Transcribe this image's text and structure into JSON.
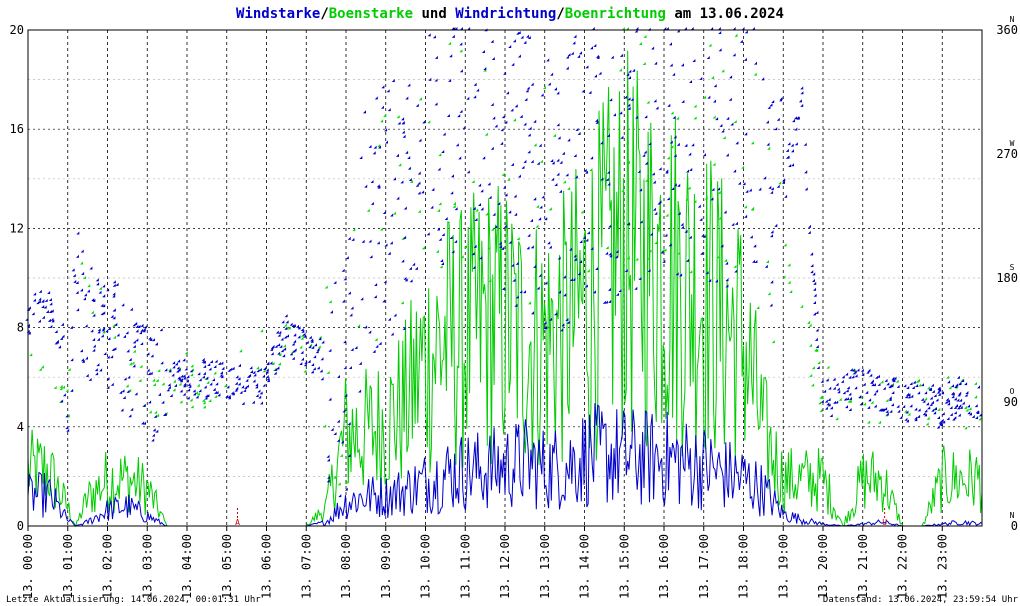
{
  "chart_data": {
    "type": "line",
    "title_parts": [
      {
        "text": "Windstarke",
        "color": "#0000cc"
      },
      {
        "text": "/",
        "color": "#000000"
      },
      {
        "text": "Boenstarke",
        "color": "#00cc00"
      },
      {
        "text": " und ",
        "color": "#000000"
      },
      {
        "text": "Windrichtung",
        "color": "#0000cc"
      },
      {
        "text": "/",
        "color": "#000000"
      },
      {
        "text": "Boenrichtung",
        "color": "#00cc00"
      },
      {
        "text": " am 13.06.2024",
        "color": "#000000"
      }
    ],
    "ylim": [
      0,
      20
    ],
    "y_ticks": [
      "0",
      "4",
      "8",
      "12",
      "16",
      "20"
    ],
    "y2lim": [
      0,
      360
    ],
    "y2_ticks": [
      "0",
      "90",
      "180",
      "270",
      "360"
    ],
    "compass_labels": [
      "N",
      "O",
      "S",
      "W",
      "N"
    ],
    "x_ticks": [
      "13. 00:00",
      "13. 01:00",
      "13. 02:00",
      "13. 03:00",
      "13. 04:00",
      "13. 05:00",
      "13. 06:00",
      "13. 07:00",
      "13. 08:00",
      "13. 09:00",
      "13. 10:00",
      "13. 11:00",
      "13. 12:00",
      "13. 13:00",
      "13. 14:00",
      "13. 15:00",
      "13. 16:00",
      "13. 17:00",
      "13. 18:00",
      "13. 19:00",
      "13. 20:00",
      "13. 21:00",
      "13. 22:00",
      "13. 23:00"
    ],
    "sun_markers": [
      {
        "label": "A",
        "hour": 5.27
      },
      {
        "label": "U",
        "hour": 21.55
      }
    ],
    "series": [
      {
        "key": "wind_speed",
        "color": "#0000cc"
      },
      {
        "key": "gust_speed",
        "color": "#00cc00"
      },
      {
        "key": "wind_direction",
        "color": "#0000cc"
      },
      {
        "key": "gust_direction",
        "color": "#00cc00"
      }
    ],
    "wind_speed": {
      "hours": [
        0,
        0.5,
        1,
        1.2,
        1.5,
        2,
        2.5,
        3,
        3.5,
        4,
        4.5,
        5,
        5.5,
        6,
        6.5,
        7,
        7.5,
        8,
        8.5,
        9,
        9.5,
        10,
        10.5,
        11,
        11.5,
        12,
        12.5,
        13,
        13.5,
        14,
        14.5,
        15,
        15.5,
        16,
        16.5,
        17,
        17.5,
        18,
        18.5,
        19,
        19.5,
        20,
        20.5,
        21,
        21.5,
        22,
        22.5,
        23,
        23.5,
        24
      ],
      "values": [
        1.5,
        1.6,
        0.3,
        0.0,
        0.2,
        0.8,
        1.0,
        0.5,
        0.0,
        0.0,
        0.0,
        0.0,
        0.0,
        0.0,
        0.0,
        0.0,
        0.2,
        1.2,
        1.5,
        1.5,
        1.8,
        2.2,
        2.6,
        2.8,
        2.8,
        3.0,
        3.2,
        2.9,
        3.0,
        3.5,
        3.6,
        3.5,
        3.4,
        3.4,
        3.2,
        3.0,
        2.6,
        2.4,
        1.8,
        0.6,
        0.3,
        0.1,
        0.0,
        0.1,
        0.2,
        0.0,
        0.0,
        0.1,
        0.2,
        0.1
      ]
    },
    "gust_speed": {
      "hours": [
        0,
        0.5,
        1,
        1.2,
        1.5,
        2,
        2.5,
        3,
        3.5,
        4,
        4.5,
        5,
        5.5,
        6,
        6.5,
        7,
        7.5,
        8,
        8.5,
        9,
        9.5,
        10,
        10.5,
        11,
        11.5,
        12,
        12.5,
        13,
        13.5,
        14,
        14.5,
        15,
        15.5,
        16,
        16.5,
        17,
        17.5,
        18,
        18.5,
        19,
        19.5,
        20,
        20.5,
        21,
        21.5,
        22,
        22.5,
        23,
        23.5,
        24
      ],
      "values": [
        3.0,
        3.0,
        1.0,
        0.0,
        1.5,
        2.5,
        2.5,
        2.0,
        0.0,
        0.0,
        0.0,
        0.0,
        0.0,
        0.0,
        0.0,
        0.0,
        1.0,
        5.0,
        5.0,
        5.5,
        6.5,
        9.0,
        10.0,
        10.0,
        11.0,
        11.0,
        10.0,
        10.0,
        10.5,
        12.0,
        13.5,
        15.0,
        14.0,
        14.5,
        13.0,
        12.5,
        11.0,
        10.0,
        5.0,
        2.5,
        2.5,
        2.5,
        0.0,
        2.5,
        2.5,
        0.0,
        0.0,
        2.5,
        2.5,
        2.5
      ]
    },
    "wind_direction": {
      "hours": [
        0,
        0.5,
        1,
        1.3,
        1.6,
        2,
        2.5,
        3,
        3.5,
        4,
        4.5,
        5,
        5.5,
        6,
        6.5,
        7,
        7.5,
        8,
        8.5,
        9,
        9.5,
        10,
        10.5,
        11,
        11.5,
        12,
        12.5,
        13,
        13.5,
        14,
        14.5,
        15,
        15.5,
        16,
        16.5,
        17,
        17.5,
        18,
        18.5,
        19,
        19.5,
        20,
        20.5,
        21,
        21.5,
        22,
        22.5,
        23,
        23.5,
        24
      ],
      "values": [
        150,
        165,
        95,
        175,
        145,
        140,
        125,
        100,
        105,
        105,
        105,
        103,
        100,
        100,
        140,
        125,
        120,
        110,
        215,
        225,
        235,
        255,
        270,
        285,
        270,
        250,
        260,
        240,
        235,
        275,
        260,
        265,
        270,
        280,
        270,
        265,
        270,
        280,
        260,
        240,
        305,
        90,
        95,
        100,
        95,
        90,
        90,
        85,
        95,
        90
      ]
    },
    "gust_direction": {
      "hours": [
        0,
        1,
        1.3,
        2,
        3,
        4,
        5,
        6,
        7,
        8,
        9,
        10,
        11,
        12,
        13,
        14,
        15,
        16,
        17,
        18,
        19,
        20,
        21,
        22,
        23,
        24
      ],
      "values": [
        150,
        80,
        175,
        150,
        95,
        105,
        103,
        130,
        120,
        115,
        225,
        240,
        280,
        260,
        245,
        270,
        285,
        270,
        265,
        275,
        200,
        95,
        95,
        90,
        90,
        90
      ]
    }
  },
  "footer": {
    "left": "Letzte Aktualisierung: 14.06.2024, 00:01:31 Uhr",
    "right": "Datenstand: 13.06.2024, 23:59:54 Uhr"
  }
}
